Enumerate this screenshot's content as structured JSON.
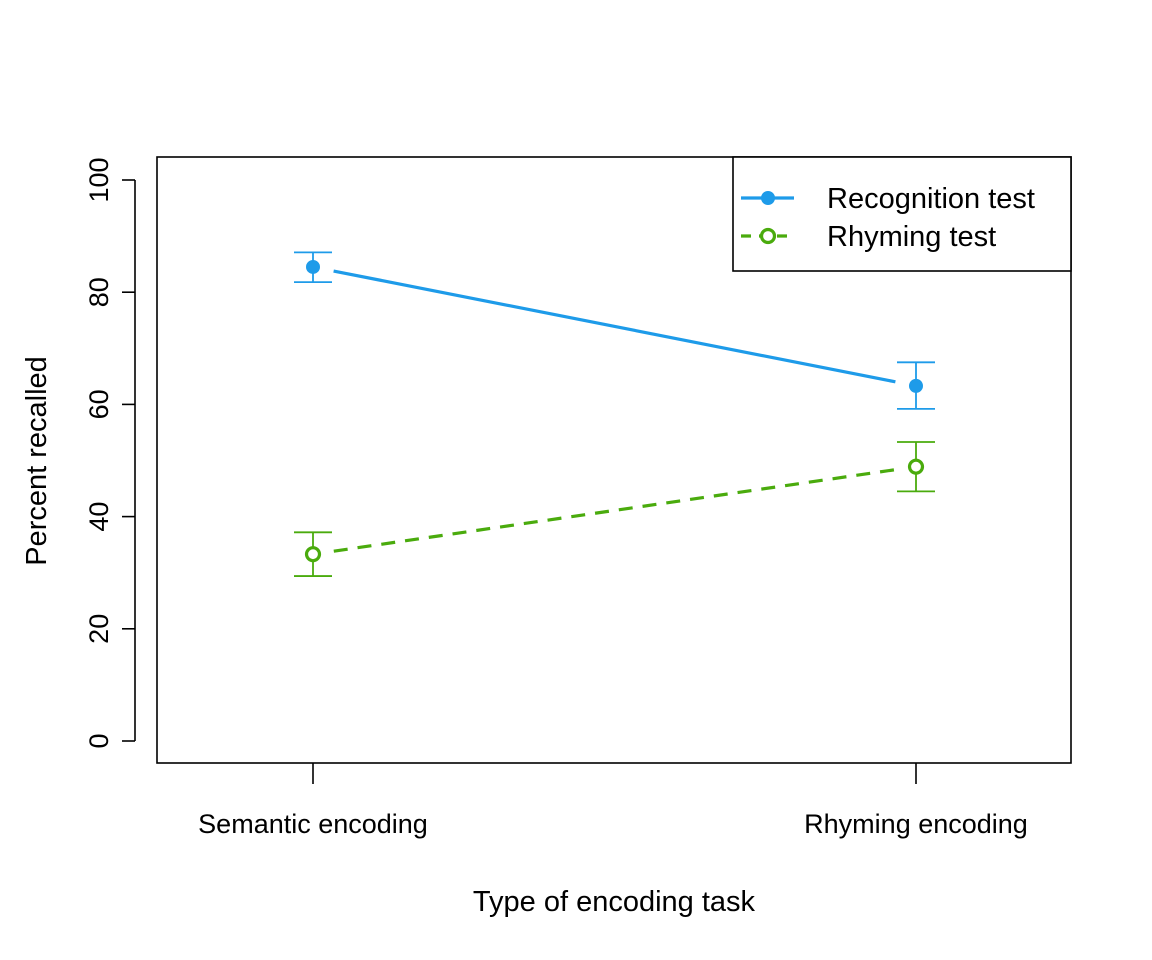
{
  "chart_data": {
    "type": "line",
    "title": "",
    "xlabel": "Type of encoding task",
    "ylabel": "Percent recalled",
    "categories": [
      "Semantic encoding",
      "Rhyming encoding"
    ],
    "ylim": [
      0,
      100
    ],
    "yticks": [
      0,
      20,
      40,
      60,
      80,
      100
    ],
    "grid": false,
    "legend_position": "top-right",
    "series": [
      {
        "name": "Recognition test",
        "values": [
          84.5,
          63.3
        ],
        "error_low": [
          81.8,
          59.2
        ],
        "error_high": [
          87.1,
          67.5
        ],
        "color": "#1e9be9",
        "line_style": "solid",
        "marker": "filled-circle"
      },
      {
        "name": "Rhyming test",
        "values": [
          33.3,
          48.9
        ],
        "error_low": [
          29.4,
          44.5
        ],
        "error_high": [
          37.2,
          53.3
        ],
        "color": "#4aab0d",
        "line_style": "dashed",
        "marker": "open-circle"
      }
    ]
  }
}
